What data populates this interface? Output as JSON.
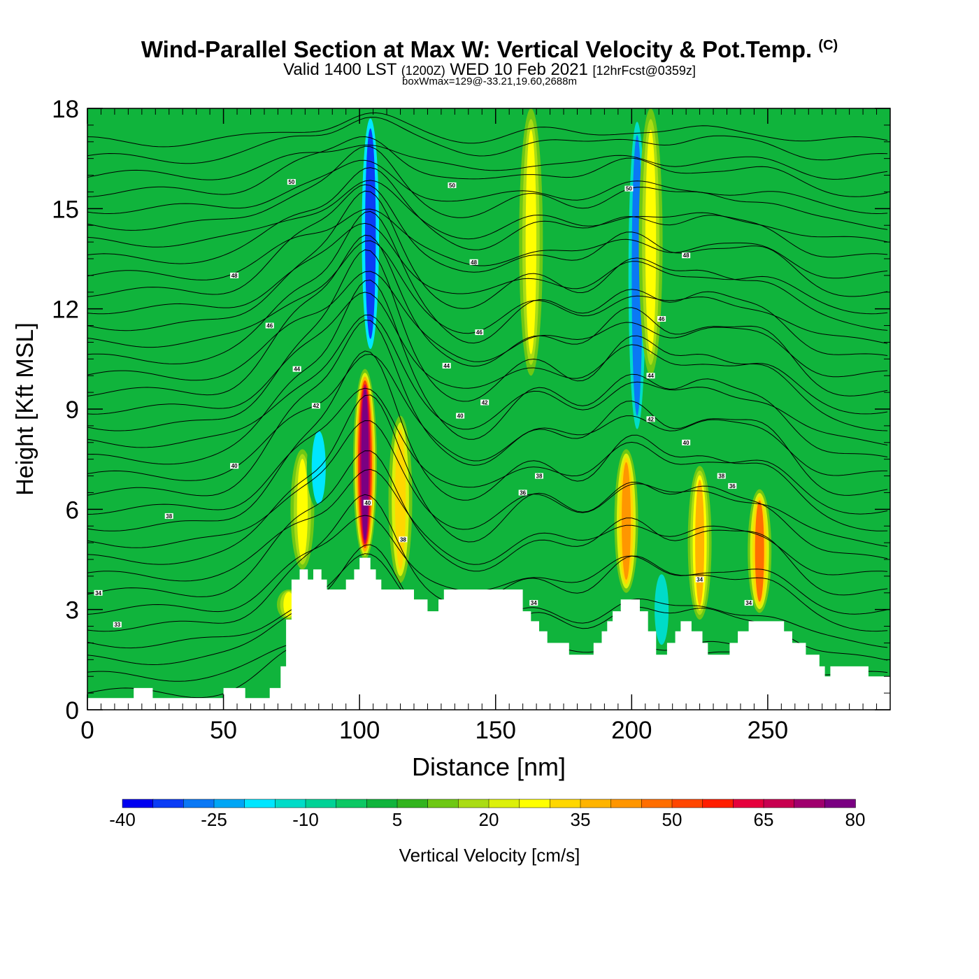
{
  "title": {
    "main": "Wind-Parallel Section at Max W: Vertical Velocity & Pot.Temp.",
    "copyright": "(C)",
    "valid_prefix": "Valid 1400 LST",
    "valid_utc": "(1200Z)",
    "valid_date": "WED 10 Feb 2021",
    "forecast": "[12hrFcst@0359z]",
    "box_wmax": "boxWmax=129@-33.21,19.60,2688m"
  },
  "colors": {
    "background_field": "#10b43c",
    "terrain": "#ffffff",
    "contour": "#000000",
    "frame": "#000000"
  },
  "chart_data": {
    "type": "heatmap",
    "subtype": "vertical cross-section, filled contours of vertical velocity with potential temperature contour lines",
    "xlabel": "Distance [nm]",
    "ylabel": "Height [Kft MSL]",
    "xlim": [
      0,
      295
    ],
    "ylim": [
      0,
      18
    ],
    "x_ticks": [
      0,
      50,
      100,
      150,
      200,
      250
    ],
    "y_ticks": [
      0,
      3,
      6,
      9,
      12,
      15,
      18
    ],
    "colorbar": {
      "label": "Vertical Velocity [cm/s]",
      "levels_min": -40,
      "levels_step": 5,
      "tick_labels": [
        "-40",
        "-25",
        "-10",
        "5",
        "20",
        "35",
        "50",
        "65",
        "80"
      ],
      "colors": [
        "#0000f0",
        "#0b3cf5",
        "#0a78f5",
        "#00a6f5",
        "#00e6ff",
        "#00dcc8",
        "#00d296",
        "#0cc864",
        "#10b43c",
        "#32b41e",
        "#6ec814",
        "#aadc14",
        "#dcf00a",
        "#ffff00",
        "#ffd700",
        "#ffb400",
        "#ff9600",
        "#ff6e00",
        "#ff4600",
        "#ff1e00",
        "#e6003c",
        "#c80050",
        "#a0006e",
        "#7a0082"
      ]
    },
    "terrain_profile": [
      [
        0,
        0.35
      ],
      [
        17,
        0.35
      ],
      [
        17,
        0.65
      ],
      [
        24,
        0.65
      ],
      [
        24,
        0.35
      ],
      [
        50,
        0.35
      ],
      [
        50,
        0.65
      ],
      [
        58,
        0.65
      ],
      [
        58,
        0.35
      ],
      [
        67,
        0.35
      ],
      [
        67,
        0.65
      ],
      [
        71,
        0.65
      ],
      [
        71,
        1.3
      ],
      [
        73,
        1.3
      ],
      [
        73,
        2.7
      ],
      [
        75,
        2.7
      ],
      [
        75,
        3.9
      ],
      [
        78,
        3.9
      ],
      [
        78,
        4.2
      ],
      [
        81,
        4.2
      ],
      [
        81,
        3.9
      ],
      [
        83,
        3.9
      ],
      [
        83,
        4.2
      ],
      [
        86,
        4.2
      ],
      [
        86,
        3.9
      ],
      [
        88,
        3.9
      ],
      [
        88,
        3.6
      ],
      [
        95,
        3.6
      ],
      [
        95,
        3.9
      ],
      [
        98,
        3.9
      ],
      [
        98,
        4.2
      ],
      [
        100,
        4.2
      ],
      [
        100,
        4.55
      ],
      [
        104,
        4.55
      ],
      [
        104,
        4.2
      ],
      [
        106,
        4.2
      ],
      [
        106,
        3.9
      ],
      [
        108,
        3.9
      ],
      [
        108,
        3.6
      ],
      [
        120,
        3.6
      ],
      [
        120,
        3.3
      ],
      [
        125,
        3.3
      ],
      [
        125,
        2.95
      ],
      [
        129,
        2.95
      ],
      [
        129,
        3.3
      ],
      [
        131,
        3.3
      ],
      [
        131,
        3.6
      ],
      [
        160,
        3.6
      ],
      [
        160,
        2.95
      ],
      [
        163,
        2.95
      ],
      [
        163,
        2.65
      ],
      [
        166,
        2.65
      ],
      [
        166,
        2.35
      ],
      [
        169,
        2.35
      ],
      [
        169,
        2.0
      ],
      [
        177,
        2.0
      ],
      [
        177,
        1.65
      ],
      [
        186,
        1.65
      ],
      [
        186,
        2.0
      ],
      [
        189,
        2.0
      ],
      [
        189,
        2.35
      ],
      [
        191,
        2.35
      ],
      [
        191,
        2.65
      ],
      [
        193,
        2.65
      ],
      [
        193,
        2.95
      ],
      [
        196,
        2.95
      ],
      [
        196,
        3.3
      ],
      [
        203,
        3.3
      ],
      [
        203,
        2.95
      ],
      [
        206,
        2.95
      ],
      [
        206,
        2.35
      ],
      [
        209,
        2.35
      ],
      [
        209,
        1.65
      ],
      [
        213,
        1.65
      ],
      [
        213,
        2.0
      ],
      [
        216,
        2.0
      ],
      [
        216,
        2.35
      ],
      [
        218,
        2.35
      ],
      [
        218,
        2.65
      ],
      [
        222,
        2.65
      ],
      [
        222,
        2.35
      ],
      [
        226,
        2.35
      ],
      [
        226,
        2.0
      ],
      [
        228,
        2.0
      ],
      [
        228,
        1.65
      ],
      [
        236,
        1.65
      ],
      [
        236,
        2.0
      ],
      [
        239,
        2.0
      ],
      [
        239,
        2.35
      ],
      [
        243,
        2.35
      ],
      [
        243,
        2.65
      ],
      [
        256,
        2.65
      ],
      [
        256,
        2.35
      ],
      [
        259,
        2.35
      ],
      [
        259,
        2.0
      ],
      [
        264,
        2.0
      ],
      [
        264,
        1.65
      ],
      [
        269,
        1.65
      ],
      [
        269,
        1.3
      ],
      [
        271,
        1.3
      ],
      [
        271,
        1.0
      ],
      [
        273,
        1.0
      ],
      [
        273,
        1.3
      ],
      [
        287,
        1.3
      ],
      [
        287,
        1.0
      ],
      [
        295,
        1.0
      ]
    ],
    "velocity_features": [
      {
        "x": 102,
        "z_bottom": 4.5,
        "z_top": 10.2,
        "w": 80
      },
      {
        "x": 115,
        "z_bottom": 3.8,
        "z_top": 8.8,
        "w": 30
      },
      {
        "x": 79,
        "z_bottom": 4.2,
        "z_top": 7.8,
        "w": 28
      },
      {
        "x": 198,
        "z_bottom": 3.5,
        "z_top": 7.8,
        "w": 42
      },
      {
        "x": 225,
        "z_bottom": 2.7,
        "z_top": 7.3,
        "w": 38
      },
      {
        "x": 247,
        "z_bottom": 2.9,
        "z_top": 6.6,
        "w": 45
      },
      {
        "x": 74,
        "z_bottom": 2.7,
        "z_top": 3.6,
        "w": 25
      },
      {
        "x": 104,
        "z_bottom": 10.5,
        "z_top": 18,
        "w": -35
      },
      {
        "x": 202,
        "z_bottom": 8.0,
        "z_top": 18,
        "w": -30
      },
      {
        "x": 211,
        "z_bottom": 1.8,
        "z_top": 4.2,
        "w": -12
      },
      {
        "x": 85,
        "z_bottom": 6.0,
        "z_top": 8.5,
        "w": -18
      },
      {
        "x": 163,
        "z_bottom": 10.0,
        "z_top": 18,
        "w": 25
      },
      {
        "x": 207,
        "z_bottom": 10.0,
        "z_top": 18,
        "w": 25
      }
    ],
    "theta_labels": [
      {
        "x": 4,
        "z": 3.5,
        "text": "34"
      },
      {
        "x": 11,
        "z": 2.55,
        "text": "33"
      },
      {
        "x": 30,
        "z": 5.8,
        "text": "38"
      },
      {
        "x": 54,
        "z": 7.3,
        "text": "40"
      },
      {
        "x": 77,
        "z": 10.2,
        "text": "44"
      },
      {
        "x": 67,
        "z": 11.5,
        "text": "46"
      },
      {
        "x": 54,
        "z": 13.0,
        "text": "48"
      },
      {
        "x": 75,
        "z": 15.8,
        "text": "50"
      },
      {
        "x": 134,
        "z": 15.7,
        "text": "50"
      },
      {
        "x": 142,
        "z": 13.4,
        "text": "48"
      },
      {
        "x": 144,
        "z": 11.3,
        "text": "46"
      },
      {
        "x": 132,
        "z": 10.3,
        "text": "44"
      },
      {
        "x": 146,
        "z": 9.2,
        "text": "42"
      },
      {
        "x": 137,
        "z": 8.8,
        "text": "40"
      },
      {
        "x": 84,
        "z": 9.1,
        "text": "42"
      },
      {
        "x": 103,
        "z": 6.2,
        "text": "40"
      },
      {
        "x": 116,
        "z": 5.1,
        "text": "38"
      },
      {
        "x": 160,
        "z": 6.5,
        "text": "36"
      },
      {
        "x": 166,
        "z": 7.0,
        "text": "38"
      },
      {
        "x": 164,
        "z": 3.2,
        "text": "34"
      },
      {
        "x": 199,
        "z": 15.6,
        "text": "50"
      },
      {
        "x": 220,
        "z": 13.6,
        "text": "48"
      },
      {
        "x": 211,
        "z": 11.7,
        "text": "46"
      },
      {
        "x": 207,
        "z": 10.0,
        "text": "44"
      },
      {
        "x": 207,
        "z": 8.7,
        "text": "42"
      },
      {
        "x": 220,
        "z": 8.0,
        "text": "40"
      },
      {
        "x": 233,
        "z": 7.0,
        "text": "38"
      },
      {
        "x": 237,
        "z": 6.7,
        "text": "36"
      },
      {
        "x": 225,
        "z": 3.9,
        "text": "34"
      },
      {
        "x": 243,
        "z": 3.2,
        "text": "34"
      }
    ]
  }
}
